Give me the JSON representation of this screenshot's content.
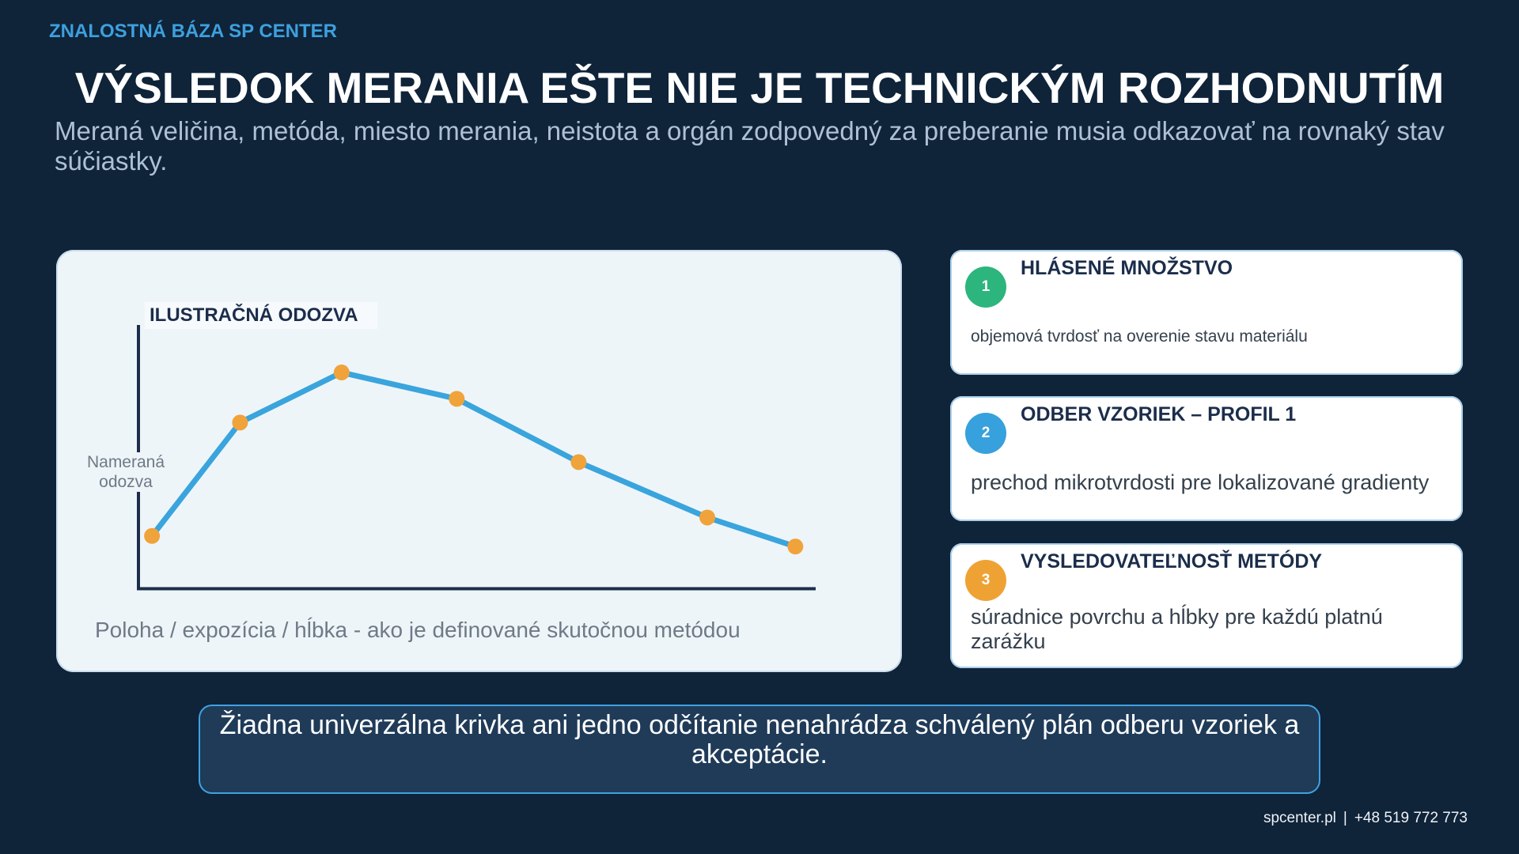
{
  "header": {
    "kicker": "ZNALOSTNÁ BÁZA SP CENTER",
    "title": "VÝSLEDOK MERANIA EŠTE NIE JE TECHNICKÝM ROZHODNUTÍM",
    "subtitle": "Meraná veličina, metóda, miesto merania, neistota a orgán zodpovedný za preberanie musia odkazovať na rovnaký stav súčiastky."
  },
  "chart_data": {
    "type": "line",
    "title": "ILUSTRAČNÁ ODOZVA",
    "xlabel": "Poloha / expozícia / hĺbka - ako je definované skutočnou metódou",
    "ylabel": "Nameraná odozva",
    "x": [
      2,
      15,
      30,
      47,
      65,
      84,
      97
    ],
    "series": [
      {
        "values": [
          20,
          63,
          82,
          72,
          48,
          27,
          16
        ]
      }
    ],
    "xlim": [
      0,
      100
    ],
    "ylim": [
      0,
      100
    ],
    "grid": false,
    "legend": "none",
    "colors": {
      "line": "#3aa4dd",
      "marker": "#f0a33b",
      "axis": "#1b2d4b"
    }
  },
  "cards": [
    {
      "number": "1",
      "title": "HLÁSENÉ MNOŽSTVO",
      "description": "objemová tvrdosť na overenie stavu materiálu",
      "color": "#2cb57d"
    },
    {
      "number": "2",
      "title": "ODBER VZORIEK – PROFIL 1",
      "description": "prechod mikrotvrdosti pre lokalizované gradienty",
      "color": "#36a1dc"
    },
    {
      "number": "3",
      "title": "VYSLEDOVATEĽNOSŤ METÓDY",
      "description": "súradnice povrchu a hĺbky pre každú platnú zarážku",
      "color": "#efa234"
    }
  ],
  "callout": {
    "text": "Žiadna univerzálna krivka ani jedno odčítanie nenahrádza schválený plán odberu vzoriek a akceptácie."
  },
  "footer": {
    "website": "spcenter.pl",
    "separator": "|",
    "phone": "+48 519 772 773"
  }
}
